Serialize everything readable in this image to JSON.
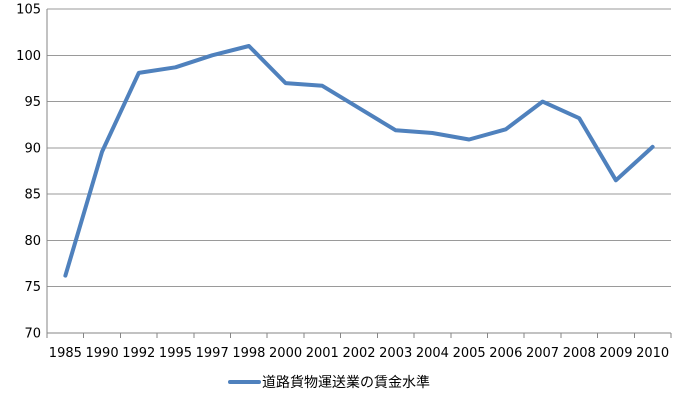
{
  "chart_data": {
    "type": "line",
    "title": "",
    "xlabel": "",
    "ylabel": "",
    "categories": [
      "1985",
      "1990",
      "1992",
      "1995",
      "1997",
      "1998",
      "2000",
      "2001",
      "2002",
      "2003",
      "2004",
      "2005",
      "2006",
      "2007",
      "2008",
      "2009",
      "2010"
    ],
    "y_ticks": [
      70,
      75,
      80,
      85,
      90,
      95,
      100,
      105
    ],
    "ylim": [
      70,
      105
    ],
    "grid": true,
    "legend_position": "bottom",
    "series": [
      {
        "name": "道路貨物運送業の賃金水準",
        "color": "#4F81BD",
        "values": [
          76.2,
          89.6,
          98.1,
          98.7,
          100.0,
          101.0,
          97.0,
          96.7,
          94.3,
          91.9,
          91.6,
          90.9,
          92.0,
          95.0,
          93.2,
          86.5,
          90.1
        ]
      }
    ]
  }
}
